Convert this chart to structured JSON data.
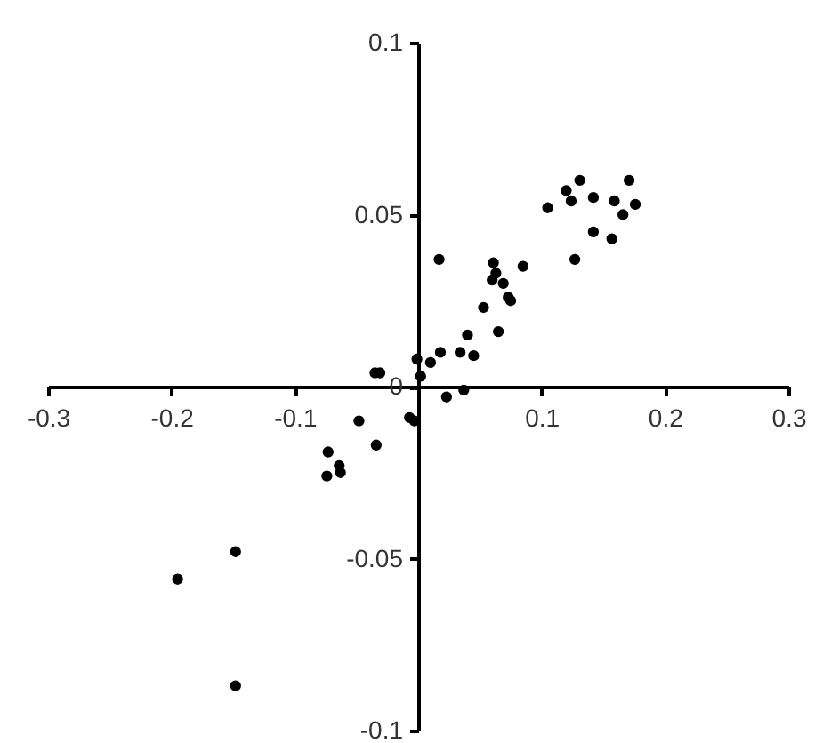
{
  "chart_data": {
    "type": "scatter",
    "x": [
      0.017,
      0.105,
      0.12,
      0.124,
      0.131,
      0.142,
      0.159,
      0.171,
      0.176,
      0.166,
      0.142,
      0.157,
      0.127,
      0.061,
      0.085,
      0.063,
      0.06,
      0.069,
      0.073,
      0.075,
      0.053,
      0.065,
      0.04,
      0.018,
      0.034,
      0.045,
      0.01,
      -0.001,
      0.002,
      -0.035,
      -0.031,
      0.023,
      0.037,
      -0.048,
      -0.007,
      -0.003,
      -0.034,
      -0.073,
      -0.064,
      -0.074,
      -0.063,
      -0.148,
      -0.195,
      -0.148
    ],
    "values": [
      0.037,
      0.052,
      0.057,
      0.054,
      0.06,
      0.055,
      0.054,
      0.06,
      0.053,
      0.05,
      0.045,
      0.043,
      0.037,
      0.036,
      0.035,
      0.033,
      0.031,
      0.03,
      0.026,
      0.025,
      0.023,
      0.016,
      0.015,
      0.01,
      0.01,
      0.009,
      0.007,
      0.008,
      0.003,
      0.004,
      0.004,
      -0.003,
      -0.001,
      -0.01,
      -0.009,
      -0.01,
      -0.017,
      -0.019,
      -0.023,
      -0.026,
      -0.025,
      -0.048,
      -0.056,
      -0.087
    ],
    "color": "#000000",
    "marker": "circle",
    "grid": false,
    "xlim": [
      -0.3,
      0.3
    ],
    "xticks": [
      -0.3,
      -0.2,
      -0.1,
      {
        "value": 0,
        "label": null
      },
      0.1,
      0.2,
      0.3
    ],
    "ylim": [
      -0.1,
      0.1
    ],
    "yticks": [
      -0.1,
      -0.05,
      0,
      0.05,
      0.1
    ]
  }
}
